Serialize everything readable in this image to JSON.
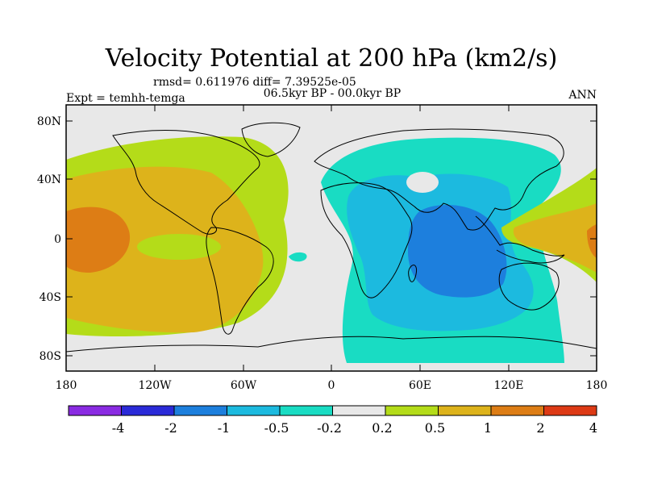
{
  "header": {
    "title": "Velocity Potential at 200 hPa (km2/s)",
    "stats": "rmsd= 0.611976  diff= 7.39525e-05",
    "period": "06.5kyr BP - 00.0kyr BP",
    "experiment": "Expt = temhh-temga",
    "season": "ANN"
  },
  "axes": {
    "y_ticks": [
      "80N",
      "40N",
      "0",
      "40S",
      "80S"
    ],
    "x_ticks": [
      "180",
      "120W",
      "60W",
      "0",
      "60E",
      "120E",
      "180"
    ]
  },
  "colorbar": {
    "labels": [
      "-4",
      "-2",
      "-1",
      "-0.5",
      "-0.2",
      "0.2",
      "0.5",
      "1",
      "2",
      "4"
    ],
    "colors": [
      "#8a2be2",
      "#2a2ad8",
      "#1d7fdd",
      "#1cbadf",
      "#19dcc3",
      "#e8e8e8",
      "#b4dc19",
      "#ddb31b",
      "#dd7d15",
      "#dd3a15"
    ]
  },
  "colors": {
    "land_outline": "#000000",
    "neutral": "#e8e8e8",
    "yellow_green": "#b4dc19",
    "gold": "#ddb31b",
    "orange": "#dd7d15",
    "teal": "#19dcc3",
    "cyan": "#1cbadf",
    "blue": "#1d7fdd"
  }
}
